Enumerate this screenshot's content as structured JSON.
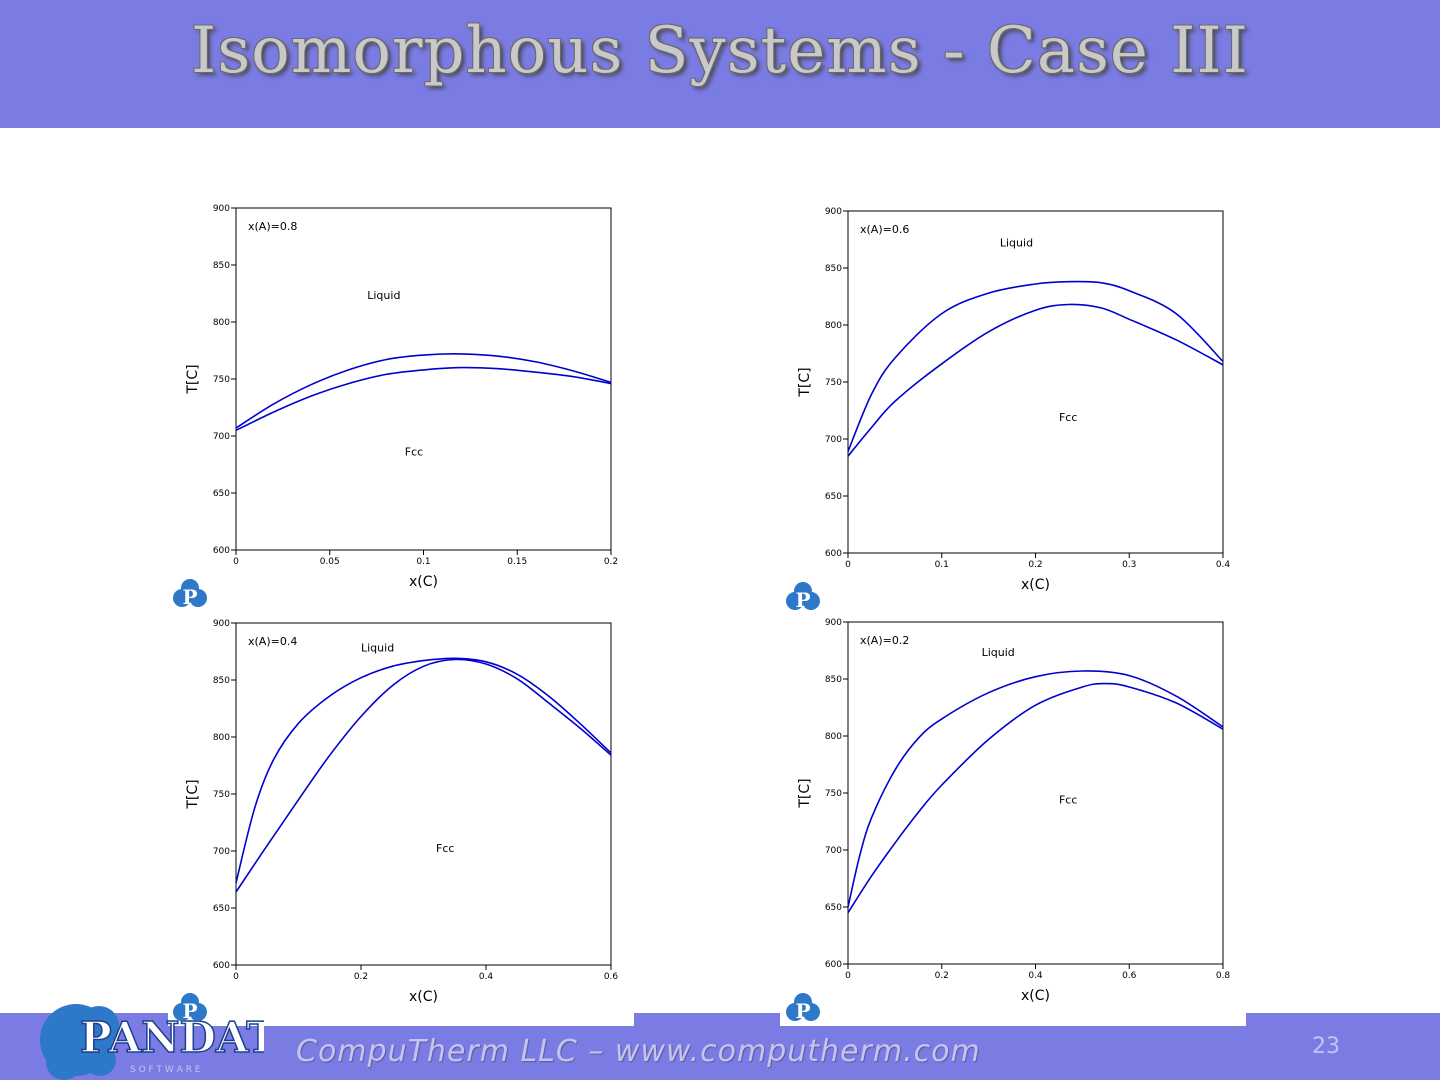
{
  "title": "Isomorphous Systems - Case III",
  "footer": {
    "company": "CompuTherm LLC – www.computherm.com",
    "page_number": "23"
  },
  "logo": {
    "brand": "PANDAT",
    "tagline": "S O F T W A R E"
  },
  "colors": {
    "band": "#7b7be4",
    "curve": "#0000d0",
    "title_text": "#c9c9c9"
  },
  "chart_data": [
    {
      "type": "line",
      "annotation": "x(A)=0.8",
      "xlabel": "x(C)",
      "ylabel": "T[C]",
      "xlim": [
        0,
        0.2
      ],
      "ylim": [
        600,
        900
      ],
      "xticks": [
        0,
        0.05,
        0.1,
        0.15,
        0.2
      ],
      "yticks": [
        600,
        650,
        700,
        750,
        800,
        850,
        900
      ],
      "xtick_labels": [
        "0",
        "0.05",
        "0.1",
        "0.15",
        "0.2"
      ],
      "ytick_labels": [
        "600",
        "650",
        "700",
        "750",
        "800",
        "850",
        "900"
      ],
      "region_labels": [
        {
          "text": "Liquid",
          "x": 0.07,
          "y": 820
        },
        {
          "text": "Fcc",
          "x": 0.09,
          "y": 683
        }
      ],
      "series": [
        {
          "x": [
            0,
            0.02,
            0.04,
            0.06,
            0.08,
            0.1,
            0.12,
            0.14,
            0.16,
            0.18,
            0.2
          ],
          "y": [
            707,
            728,
            745,
            758,
            767,
            771,
            772,
            770,
            765,
            757,
            747
          ]
        },
        {
          "x": [
            0,
            0.02,
            0.04,
            0.06,
            0.08,
            0.1,
            0.12,
            0.14,
            0.16,
            0.18,
            0.2
          ],
          "y": [
            705,
            721,
            735,
            746,
            754,
            758,
            760,
            759,
            756,
            752,
            746
          ]
        }
      ]
    },
    {
      "type": "line",
      "annotation": "x(A)=0.6",
      "xlabel": "x(C)",
      "ylabel": "T[C]",
      "xlim": [
        0,
        0.4
      ],
      "ylim": [
        600,
        900
      ],
      "xticks": [
        0,
        0.1,
        0.2,
        0.3,
        0.4
      ],
      "yticks": [
        600,
        650,
        700,
        750,
        800,
        850,
        900
      ],
      "xtick_labels": [
        "0",
        "0.1",
        "0.2",
        "0.3",
        "0.4"
      ],
      "ytick_labels": [
        "600",
        "650",
        "700",
        "750",
        "800",
        "850",
        "900"
      ],
      "region_labels": [
        {
          "text": "Liquid",
          "x": 0.162,
          "y": 869
        },
        {
          "text": "Fcc",
          "x": 0.225,
          "y": 716
        }
      ],
      "series": [
        {
          "x": [
            0,
            0.025,
            0.05,
            0.1,
            0.15,
            0.2,
            0.235,
            0.27,
            0.3,
            0.35,
            0.4
          ],
          "y": [
            689,
            739,
            771,
            810,
            828,
            836,
            838,
            837,
            830,
            810,
            768
          ]
        },
        {
          "x": [
            0,
            0.025,
            0.05,
            0.1,
            0.15,
            0.2,
            0.235,
            0.27,
            0.3,
            0.35,
            0.4
          ],
          "y": [
            685,
            710,
            733,
            766,
            794,
            813,
            818,
            815,
            805,
            787,
            765
          ]
        }
      ]
    },
    {
      "type": "line",
      "annotation": "x(A)=0.4",
      "xlabel": "x(C)",
      "ylabel": "T[C]",
      "xlim": [
        0,
        0.6
      ],
      "ylim": [
        600,
        900
      ],
      "xticks": [
        0,
        0.2,
        0.4,
        0.6
      ],
      "yticks": [
        600,
        650,
        700,
        750,
        800,
        850,
        900
      ],
      "xtick_labels": [
        "0",
        "0.2",
        "0.4",
        "0.6"
      ],
      "ytick_labels": [
        "600",
        "650",
        "700",
        "750",
        "800",
        "850",
        "900"
      ],
      "region_labels": [
        {
          "text": "Liquid",
          "x": 0.2,
          "y": 875
        },
        {
          "text": "Fcc",
          "x": 0.32,
          "y": 699
        }
      ],
      "series": [
        {
          "x": [
            0,
            0.03,
            0.06,
            0.1,
            0.15,
            0.2,
            0.25,
            0.3,
            0.35,
            0.4,
            0.45,
            0.5,
            0.55,
            0.6
          ],
          "y": [
            672,
            738,
            780,
            812,
            836,
            852,
            862,
            867,
            869,
            866,
            855,
            836,
            812,
            786
          ]
        },
        {
          "x": [
            0,
            0.05,
            0.1,
            0.15,
            0.2,
            0.25,
            0.3,
            0.35,
            0.4,
            0.45,
            0.5,
            0.55,
            0.6
          ],
          "y": [
            664,
            705,
            745,
            784,
            818,
            845,
            862,
            868,
            864,
            851,
            830,
            808,
            784
          ]
        }
      ]
    },
    {
      "type": "line",
      "annotation": "x(A)=0.2",
      "xlabel": "x(C)",
      "ylabel": "T[C]",
      "xlim": [
        0,
        0.8
      ],
      "ylim": [
        600,
        900
      ],
      "xticks": [
        0,
        0.2,
        0.4,
        0.6,
        0.8
      ],
      "yticks": [
        600,
        650,
        700,
        750,
        800,
        850,
        900
      ],
      "xtick_labels": [
        "0",
        "0.2",
        "0.4",
        "0.6",
        "0.8"
      ],
      "ytick_labels": [
        "600",
        "650",
        "700",
        "750",
        "800",
        "850",
        "900"
      ],
      "region_labels": [
        {
          "text": "Liquid",
          "x": 0.285,
          "y": 870
        },
        {
          "text": "Fcc",
          "x": 0.45,
          "y": 741
        }
      ],
      "series": [
        {
          "x": [
            0,
            0.025,
            0.05,
            0.1,
            0.15,
            0.2,
            0.3,
            0.4,
            0.5,
            0.6,
            0.7,
            0.8
          ],
          "y": [
            650,
            695,
            728,
            770,
            798,
            815,
            838,
            852,
            857,
            853,
            835,
            808
          ]
        },
        {
          "x": [
            0,
            0.05,
            0.1,
            0.15,
            0.2,
            0.3,
            0.4,
            0.5,
            0.55,
            0.6,
            0.7,
            0.8
          ],
          "y": [
            645,
            677,
            706,
            733,
            757,
            797,
            827,
            843,
            846,
            843,
            829,
            806
          ]
        }
      ]
    }
  ]
}
